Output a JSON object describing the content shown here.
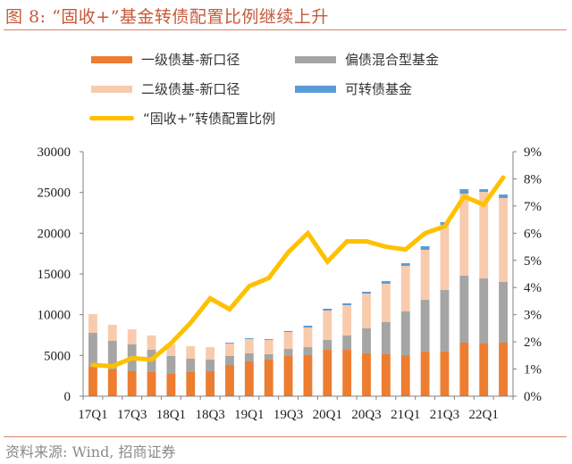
{
  "title": "图 8:  “固收+”基金转债配置比例继续上升",
  "source": "资料来源: Wind, 招商证券",
  "chart_data": {
    "type": "bar",
    "subtype": "stacked-bar-with-line",
    "title": "“固收+”基金转债配置比例继续上升",
    "categories": [
      "17Q1",
      "17Q2",
      "17Q3",
      "17Q4",
      "18Q1",
      "18Q2",
      "18Q3",
      "18Q4",
      "19Q1",
      "19Q2",
      "19Q3",
      "19Q4",
      "20Q1",
      "20Q2",
      "20Q3",
      "20Q4",
      "21Q1",
      "21Q2",
      "21Q3",
      "21Q4",
      "22Q1",
      "22Q2"
    ],
    "x_tick_labels": [
      "17Q1",
      "17Q3",
      "18Q1",
      "18Q3",
      "19Q1",
      "19Q3",
      "20Q1",
      "20Q3",
      "21Q1",
      "21Q3",
      "22Q1"
    ],
    "series": [
      {
        "name": "一级债基-新口径",
        "axis": "left",
        "kind": "bar",
        "color": "#ed7d31",
        "values": [
          3600,
          3290,
          3070,
          2960,
          2740,
          2960,
          3070,
          3830,
          4270,
          4490,
          4930,
          5040,
          5690,
          5690,
          5260,
          5150,
          5040,
          5480,
          5480,
          6570,
          6460,
          6570
        ]
      },
      {
        "name": "偏债混合型基金",
        "axis": "left",
        "kind": "bar",
        "color": "#a5a5a5",
        "values": [
          4170,
          3500,
          3280,
          2740,
          2190,
          1640,
          1420,
          1100,
          990,
          660,
          870,
          980,
          1210,
          1760,
          3060,
          3940,
          5360,
          6350,
          7550,
          8210,
          7990,
          7450
        ]
      },
      {
        "name": "二级债基-新口径",
        "axis": "left",
        "kind": "bar",
        "color": "#f8cbad",
        "values": [
          2300,
          1970,
          1860,
          1750,
          1420,
          1530,
          1530,
          1530,
          1750,
          1750,
          2080,
          2410,
          3610,
          3720,
          4270,
          4710,
          5590,
          6130,
          7990,
          10070,
          10620,
          10290
        ]
      },
      {
        "name": "可转债基金",
        "axis": "left",
        "kind": "bar",
        "color": "#5b9bd5",
        "values": [
          0,
          0,
          0,
          0,
          0,
          0,
          0,
          100,
          100,
          100,
          120,
          220,
          220,
          220,
          220,
          320,
          330,
          440,
          330,
          550,
          330,
          440
        ]
      },
      {
        "name": "“固收+”转债配置比例",
        "axis": "right",
        "kind": "line",
        "color": "#ffc000",
        "values": [
          1.15,
          1.1,
          1.4,
          1.35,
          1.95,
          2.7,
          3.6,
          3.2,
          4.05,
          4.35,
          5.3,
          6.0,
          4.95,
          5.7,
          5.7,
          5.5,
          5.4,
          6.0,
          6.25,
          7.35,
          7.05,
          8.05
        ]
      }
    ],
    "left_axis": {
      "label": "",
      "ylim": [
        0,
        30000
      ],
      "ticks": [
        "0",
        "5000",
        "10000",
        "15000",
        "20000",
        "25000",
        "30000"
      ]
    },
    "right_axis": {
      "label": "",
      "ylim": [
        0,
        9
      ],
      "unit": "%",
      "ticks": [
        "0%",
        "1%",
        "2%",
        "3%",
        "4%",
        "5%",
        "6%",
        "7%",
        "8%",
        "9%"
      ]
    },
    "grid": false,
    "legend_position": "top"
  }
}
